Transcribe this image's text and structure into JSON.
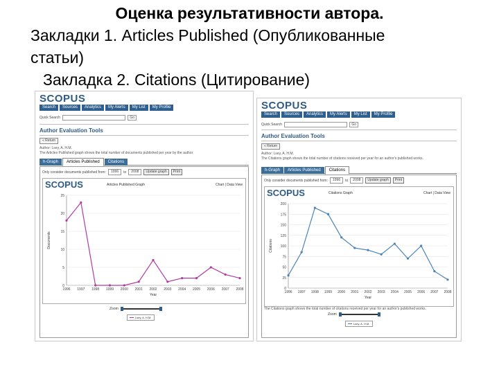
{
  "slide": {
    "title": "Оценка результативности автора.",
    "line1": "Закладки 1. Articles Published (Опубликованные",
    "line2": "статьи)",
    "line3": "Закладка 2. Citations (Цитирование)"
  },
  "left": {
    "logo": "SCOPUS",
    "nav": [
      "Search",
      "Sources",
      "Analytics",
      "My Alerts",
      "My List",
      "My Profile"
    ],
    "quick_search_label": "Quick Search",
    "go": "Go",
    "tool_title": "Author Evaluation Tools",
    "return": "« Return",
    "author": "Author: Lsey, A. H.M.",
    "description": "The Articles Published graph shows the total number of documents published per year by the author.",
    "tabs": [
      "h-Graph",
      "Articles Published",
      "Citations"
    ],
    "active_tab": 1,
    "range_label": "Only consider documents published from:",
    "from_year": "1996",
    "to_label": "to",
    "to_year": "2008",
    "update_btn": "Update graph",
    "print_btn": "Print",
    "graph_logo": "SCOPUS",
    "graph_name": "Articles Published Graph",
    "links": "Chart | Data View",
    "zoom_label": "Zoom",
    "legend": "Lsey, A. H.M."
  },
  "right": {
    "logo": "SCOPUS",
    "nav": [
      "Search",
      "Sources",
      "Analytics",
      "My Alerts",
      "My List",
      "My Profile"
    ],
    "quick_search_label": "Quick Search",
    "go": "Go",
    "tool_title": "Author Evaluation Tools",
    "return": "« Return",
    "author": "Author: Lsey, A. H.M.",
    "description": "The Citations graph shows the total number of citations received per year for an author's published works.",
    "tabs": [
      "h-Graph",
      "Articles Published",
      "Citations"
    ],
    "active_tab": 2,
    "range_label": "Only consider documents published from:",
    "from_year": "1996",
    "to_label": "to",
    "to_year": "2008",
    "update_btn": "Update graph",
    "print_btn": "Print",
    "graph_logo": "SCOPUS",
    "graph_name": "Citations Graph",
    "links": "Chart | Data View",
    "zoom_label": "Zoom",
    "legend": "Lsey, A. H.M."
  },
  "chart_data": [
    {
      "type": "line",
      "title": "Articles Published Graph",
      "xlabel": "Year",
      "ylabel": "Documents",
      "x": [
        "1996",
        "1997",
        "1998",
        "1999",
        "2000",
        "2001",
        "2002",
        "2003",
        "2004",
        "2005",
        "2006",
        "2007",
        "2008"
      ],
      "values": [
        18,
        23,
        0,
        0,
        0,
        1,
        7,
        1,
        2,
        2,
        5,
        3,
        2
      ],
      "ylim": [
        0,
        25
      ],
      "yticks": [
        0,
        5,
        10,
        15,
        20,
        25
      ],
      "color": "#b03ca0"
    },
    {
      "type": "line",
      "title": "Citations Graph",
      "xlabel": "Year",
      "ylabel": "Citations",
      "x": [
        "1996",
        "1997",
        "1998",
        "1999",
        "2000",
        "2001",
        "2002",
        "2003",
        "2004",
        "2005",
        "2006",
        "2007",
        "2008"
      ],
      "values": [
        30,
        85,
        190,
        175,
        120,
        95,
        90,
        80,
        105,
        70,
        100,
        40,
        20
      ],
      "ylim": [
        0,
        200
      ],
      "yticks": [
        0,
        25,
        50,
        75,
        100,
        125,
        150,
        175,
        200
      ],
      "color": "#4a83b8"
    }
  ]
}
